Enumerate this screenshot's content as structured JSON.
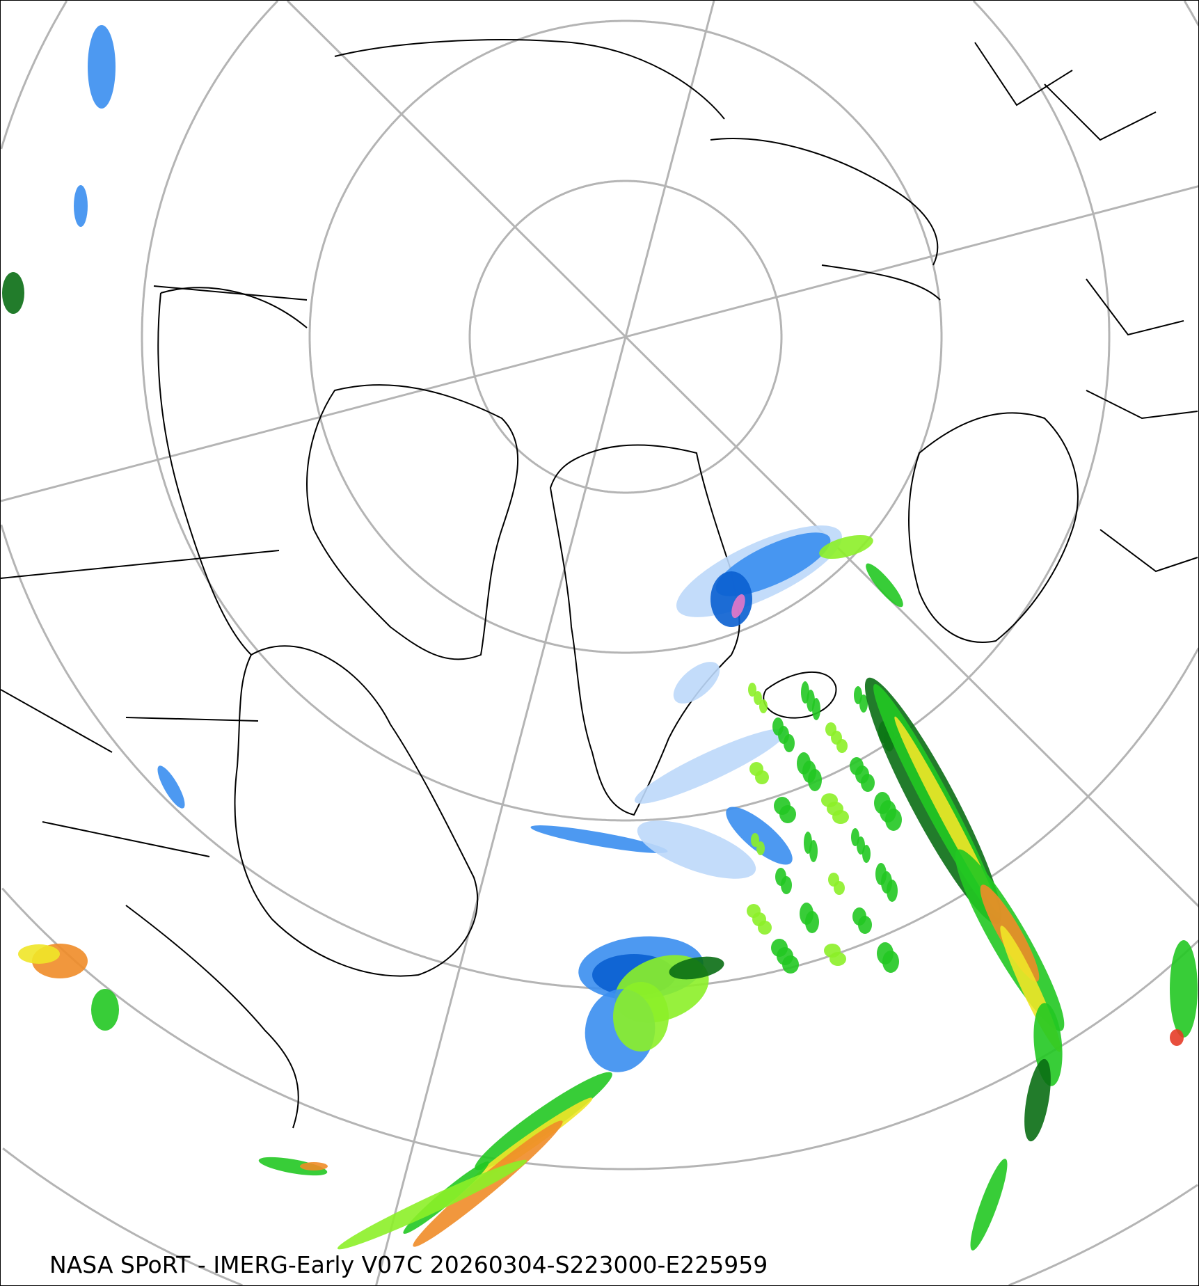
{
  "map": {
    "projection": "north polar stereographic",
    "caption": "NASA SPoRT - IMERG-Early V07C 20260304-S223000-E225959",
    "colors": {
      "graticule": "#b4b4b4",
      "coastline": "#000000",
      "light_blue": "#bcd8fa",
      "mid_blue": "#3a8ef0",
      "dark_blue": "#0a5fd0",
      "dark_green": "#0a6e14",
      "green": "#22c822",
      "light_green": "#8cf028",
      "yellow": "#f0e628",
      "orange": "#f08c28",
      "red": "#e63c28",
      "pink": "#e678c8"
    }
  }
}
